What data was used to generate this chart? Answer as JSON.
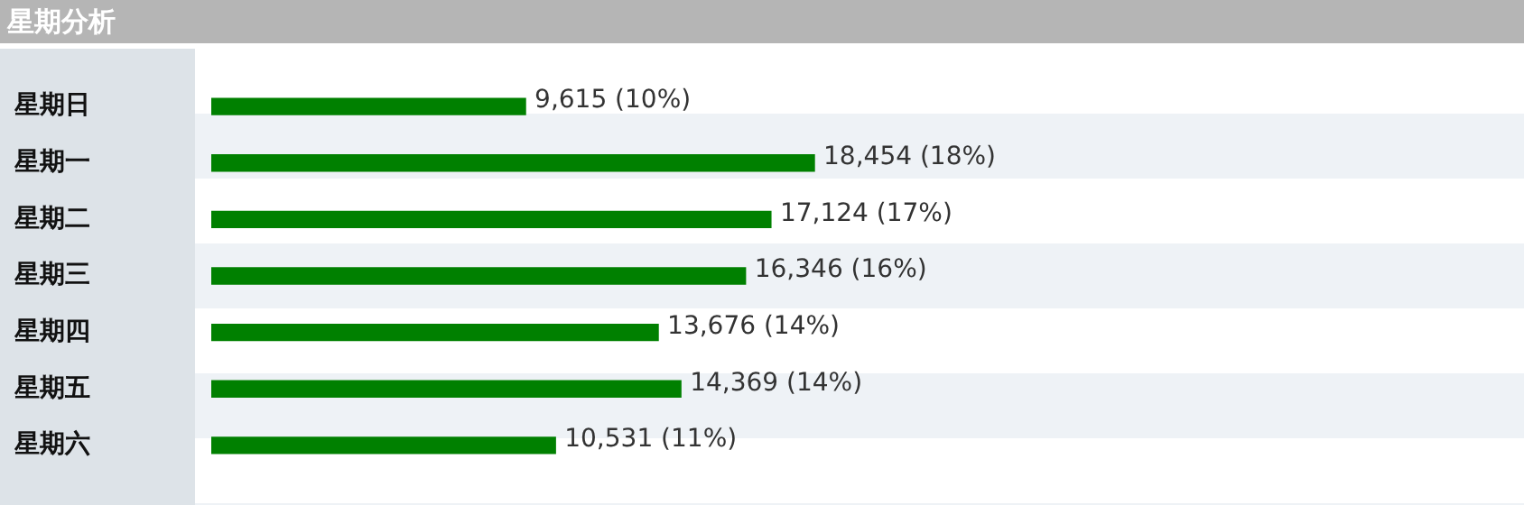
{
  "chart_data": {
    "type": "bar",
    "orientation": "horizontal",
    "title": "星期分析",
    "categories": [
      "星期日",
      "星期一",
      "星期二",
      "星期三",
      "星期四",
      "星期五",
      "星期六"
    ],
    "values": [
      9615,
      18454,
      17124,
      16346,
      13676,
      14369,
      10531
    ],
    "color": "#008000",
    "value_labels": [
      "9,615 (10%)",
      "18,454 (18%)",
      "17,124 (17%)",
      "16,346 (16%)",
      "13,676 (14%)",
      "14,369 (14%)",
      "10,531 (11%)"
    ],
    "legend": false
  }
}
